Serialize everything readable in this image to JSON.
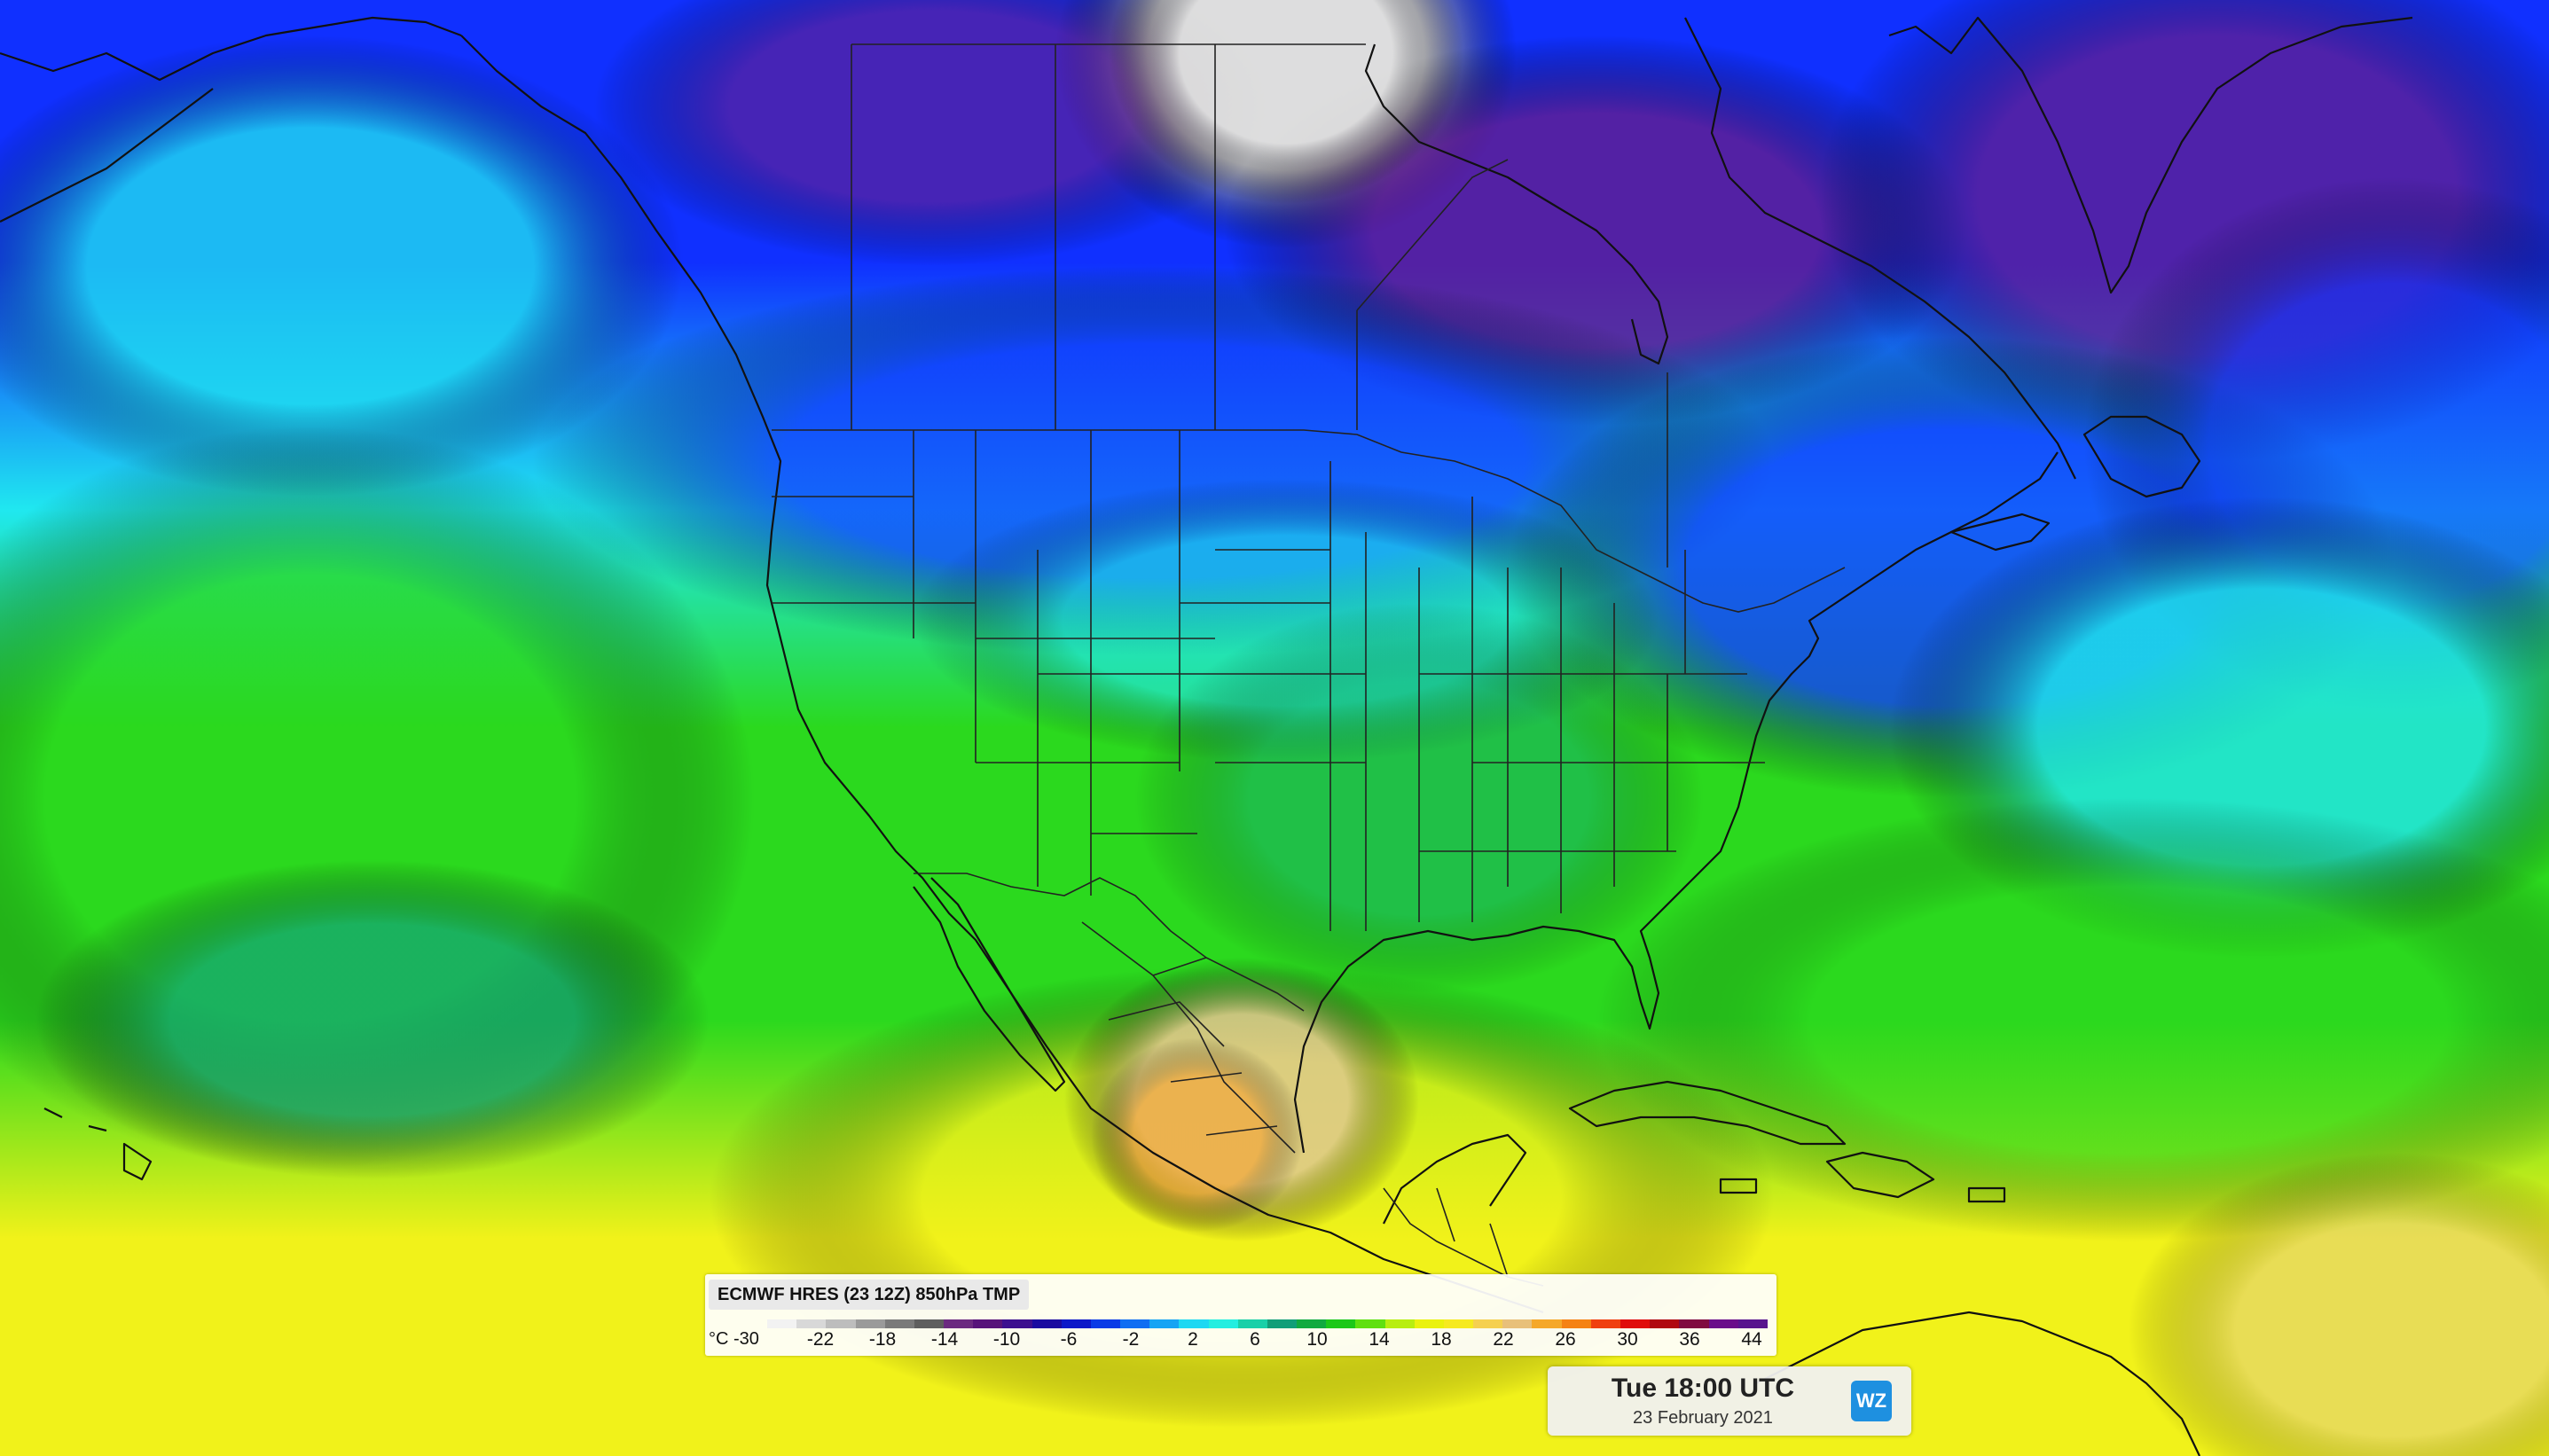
{
  "map": {
    "projection_note_visible": false,
    "palette": {
      "polar": "#dedede",
      "deep_purple": "#6a1c86",
      "blue": "#1030ff",
      "cyan": "#20e8f0",
      "teal": "#14a27a",
      "green": "#2bd91e",
      "yellow": "#f1f21a",
      "tan": "#e0c890",
      "orange": "#f5a030",
      "border": "#111111"
    }
  },
  "legend": {
    "title": "ECMWF HRES (23 12Z) 850hPa TMP",
    "unit": "°C",
    "min_label": "-30",
    "ticks": [
      "-22",
      "-18",
      "-14",
      "-10",
      "-6",
      "-2",
      "2",
      "6",
      "10",
      "14",
      "18",
      "22",
      "26",
      "30",
      "36",
      "44"
    ],
    "colors": [
      "#f2f2f2",
      "#d8d8d8",
      "#bdbdbd",
      "#9a9a9a",
      "#7a7a7a",
      "#5e5e5e",
      "#6b2a80",
      "#57137a",
      "#3c0f8f",
      "#1a0aa0",
      "#0c18c8",
      "#0a3be6",
      "#0f6ef2",
      "#16a4f4",
      "#1ed8f2",
      "#23eee0",
      "#18d0a8",
      "#109e78",
      "#10aa40",
      "#1cc81a",
      "#60e010",
      "#b8ee10",
      "#eaf20e",
      "#f6ea20",
      "#f5d050",
      "#e8c07a",
      "#f5a82a",
      "#f58214",
      "#f04010",
      "#e00c0c",
      "#b00810",
      "#800a40",
      "#6a0c8a",
      "#58148e"
    ]
  },
  "timestamp": {
    "time": "Tue 18:00 UTC",
    "date": "23 February 2021",
    "logo_text": "WZ"
  }
}
